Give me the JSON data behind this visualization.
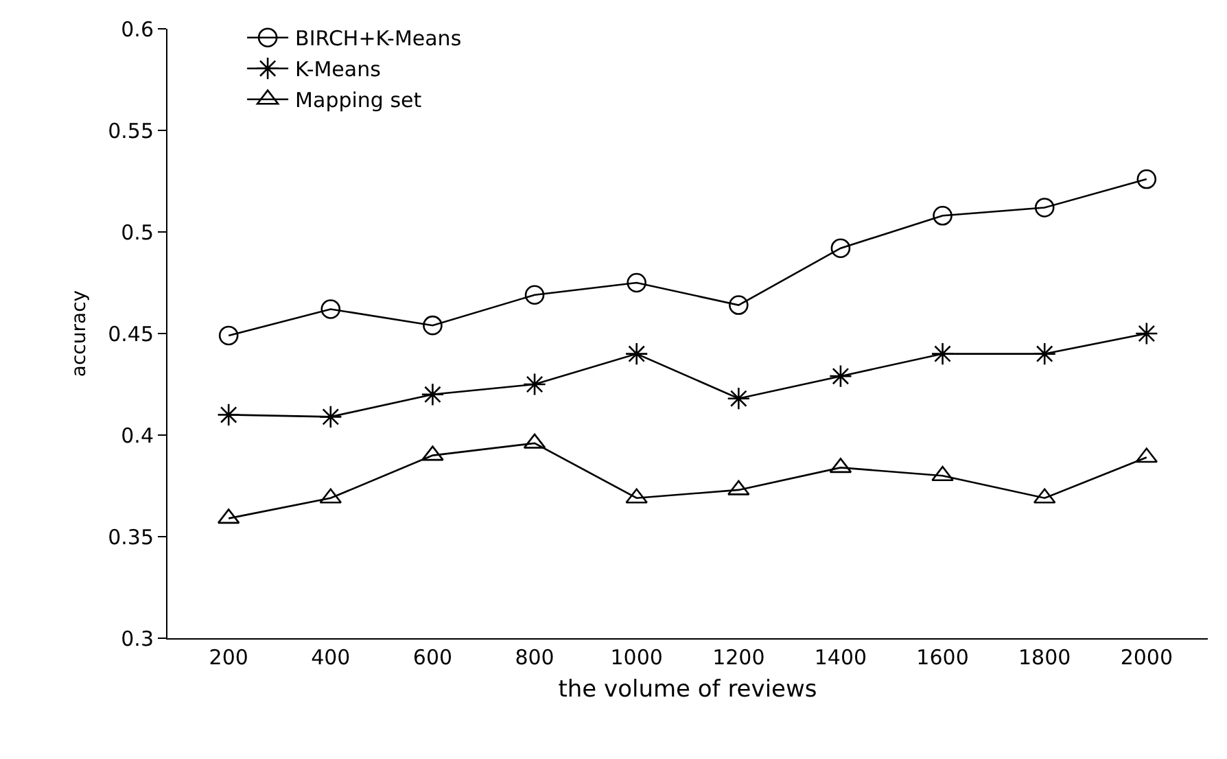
{
  "chart_data": {
    "type": "line",
    "xlabel": "the volume of reviews",
    "ylabel": "accuracy",
    "categories": [
      "200",
      "400",
      "600",
      "800",
      "1000",
      "1200",
      "1400",
      "1600",
      "1800",
      "2000"
    ],
    "series": [
      {
        "name": "BIRCH+K-Means",
        "color": "#000000",
        "marker": "circle",
        "values": [
          0.449,
          0.462,
          0.454,
          0.469,
          0.475,
          0.464,
          0.492,
          0.508,
          0.512,
          0.526
        ]
      },
      {
        "name": "K-Means",
        "color": "#000000",
        "marker": "cross",
        "values": [
          0.41,
          0.409,
          0.42,
          0.425,
          0.44,
          0.418,
          0.429,
          0.44,
          0.44,
          0.45
        ]
      },
      {
        "name": "Mapping set",
        "color": "#000000",
        "marker": "triangle",
        "values": [
          0.359,
          0.369,
          0.39,
          0.396,
          0.369,
          0.373,
          0.384,
          0.38,
          0.369,
          0.389
        ]
      }
    ],
    "ylim": [
      0.3,
      0.6
    ],
    "yticks": [
      {
        "value": 0.3,
        "label": "0.3"
      },
      0.35,
      {
        "value": 0.4,
        "label": "0.4"
      },
      0.45,
      {
        "value": 0.5,
        "label": "0.5"
      },
      0.55,
      {
        "value": 0.6,
        "label": "0.6"
      }
    ],
    "grid": false,
    "legend": "top left",
    "line_style": "solid"
  }
}
